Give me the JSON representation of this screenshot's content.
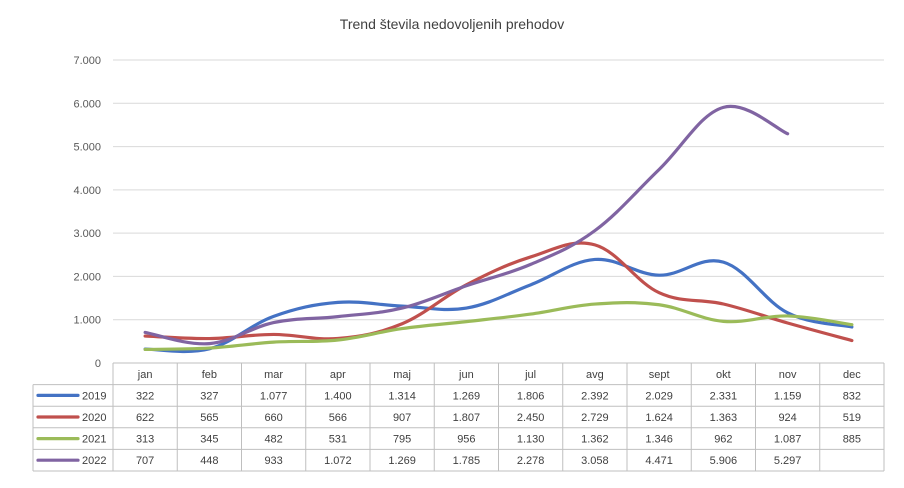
{
  "chart_data": {
    "type": "line",
    "title": "Trend števila nedovoljenih prehodov",
    "xlabel": "",
    "ylabel": "",
    "ylim": [
      0,
      7000
    ],
    "yticks": [
      0,
      1000,
      2000,
      3000,
      4000,
      5000,
      6000,
      7000
    ],
    "ytick_labels": [
      "0",
      "1.000",
      "2.000",
      "3.000",
      "4.000",
      "5.000",
      "6.000",
      "7.000"
    ],
    "grid": true,
    "legend": "data-table-below",
    "categories": [
      "jan",
      "feb",
      "mar",
      "apr",
      "maj",
      "jun",
      "jul",
      "avg",
      "sept",
      "okt",
      "nov",
      "dec"
    ],
    "series": [
      {
        "name": "2019",
        "color": "#4472C4",
        "values": [
          322,
          327,
          1077,
          1400,
          1314,
          1269,
          1806,
          2392,
          2029,
          2331,
          1159,
          832
        ],
        "labels": [
          "322",
          "327",
          "1.077",
          "1.400",
          "1.314",
          "1.269",
          "1.806",
          "2.392",
          "2.029",
          "2.331",
          "1.159",
          "832"
        ]
      },
      {
        "name": "2020",
        "color": "#C0504D",
        "values": [
          622,
          565,
          660,
          566,
          907,
          1807,
          2450,
          2729,
          1624,
          1363,
          924,
          519
        ],
        "labels": [
          "622",
          "565",
          "660",
          "566",
          "907",
          "1.807",
          "2.450",
          "2.729",
          "1.624",
          "1.363",
          "924",
          "519"
        ]
      },
      {
        "name": "2021",
        "color": "#9BBB59",
        "values": [
          313,
          345,
          482,
          531,
          795,
          956,
          1130,
          1362,
          1346,
          962,
          1087,
          885
        ],
        "labels": [
          "313",
          "345",
          "482",
          "531",
          "795",
          "956",
          "1.130",
          "1.362",
          "1.346",
          "962",
          "1.087",
          "885"
        ]
      },
      {
        "name": "2022",
        "color": "#8064A2",
        "values": [
          707,
          448,
          933,
          1072,
          1269,
          1785,
          2278,
          3058,
          4471,
          5906,
          5297,
          null
        ],
        "labels": [
          "707",
          "448",
          "933",
          "1.072",
          "1.269",
          "1.785",
          "2.278",
          "3.058",
          "4.471",
          "5.906",
          "5.297",
          ""
        ]
      }
    ]
  }
}
